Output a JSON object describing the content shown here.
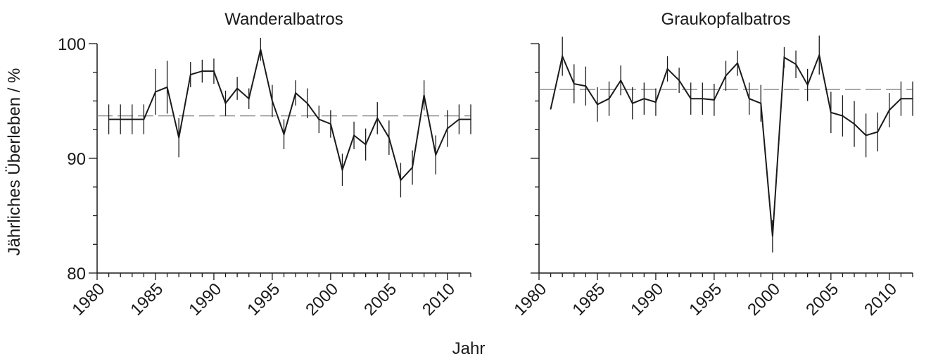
{
  "figure": {
    "ylabel": "Jährliches Überleben / %",
    "xlabel": "Jahr"
  },
  "chart_data": [
    {
      "type": "line",
      "title": "Wanderalbatros",
      "xlim": [
        1980,
        2012
      ],
      "ylim": [
        80,
        100
      ],
      "xticks": [
        1980,
        1985,
        1990,
        1995,
        2000,
        2005,
        2010
      ],
      "yticks": [
        80,
        90,
        100
      ],
      "grid": false,
      "reference_line": 93.7,
      "series": [
        {
          "x": [
            1981,
            1982,
            1983,
            1984,
            1985,
            1986,
            1987,
            1988,
            1989,
            1990,
            1991,
            1992,
            1993,
            1994,
            1995,
            1996,
            1997,
            1998,
            1999,
            2000,
            2001,
            2002,
            2003,
            2004,
            2005,
            2006,
            2007,
            2008,
            2009,
            2010,
            2011,
            2012
          ],
          "y": [
            93.4,
            93.4,
            93.4,
            93.4,
            95.8,
            96.2,
            91.8,
            97.3,
            97.6,
            97.6,
            94.8,
            96.1,
            95.2,
            99.5,
            95.0,
            92.1,
            95.7,
            94.8,
            93.4,
            93.0,
            89.0,
            92.0,
            91.2,
            93.5,
            91.8,
            88.1,
            89.2,
            95.5,
            90.3,
            92.6,
            93.4,
            93.4
          ],
          "err": [
            1.3,
            1.3,
            1.3,
            1.3,
            2.0,
            2.3,
            1.7,
            1.1,
            1.0,
            1.1,
            1.1,
            1.0,
            0.9,
            1.0,
            1.4,
            1.3,
            1.1,
            1.3,
            1.2,
            1.2,
            1.4,
            1.2,
            1.4,
            1.4,
            1.5,
            1.5,
            1.5,
            1.3,
            1.7,
            1.6,
            1.3,
            1.3
          ]
        }
      ]
    },
    {
      "type": "line",
      "title": "Graukopfalbatros",
      "xlim": [
        1980,
        2012
      ],
      "ylim": [
        80,
        100
      ],
      "xticks": [
        1980,
        1985,
        1990,
        1995,
        2000,
        2005,
        2010
      ],
      "yticks": [
        80,
        90,
        100
      ],
      "grid": false,
      "reference_line": 96.0,
      "series": [
        {
          "x": [
            1981,
            1982,
            1983,
            1984,
            1985,
            1986,
            1987,
            1988,
            1989,
            1990,
            1991,
            1992,
            1993,
            1994,
            1995,
            1996,
            1997,
            1998,
            1999,
            2000,
            2001,
            2002,
            2003,
            2004,
            2005,
            2006,
            2007,
            2008,
            2009,
            2010,
            2011,
            2012
          ],
          "y": [
            94.3,
            98.9,
            96.5,
            96.3,
            94.7,
            95.2,
            96.8,
            94.8,
            95.2,
            94.9,
            97.8,
            96.8,
            95.2,
            95.2,
            95.1,
            97.2,
            98.3,
            95.2,
            94.8,
            83.2,
            98.8,
            98.2,
            96.4,
            99.0,
            94.0,
            93.7,
            93.0,
            92.0,
            92.3,
            94.2,
            95.2,
            95.2
          ],
          "err": [
            0,
            1.7,
            1.7,
            1.7,
            1.5,
            1.5,
            1.3,
            1.4,
            1.4,
            1.2,
            1.1,
            1.1,
            1.4,
            1.4,
            1.4,
            1.3,
            1.1,
            1.4,
            1.6,
            1.4,
            0.9,
            1.2,
            1.4,
            1.7,
            1.8,
            1.8,
            2.0,
            1.9,
            1.7,
            1.5,
            1.5,
            1.5
          ]
        }
      ]
    }
  ]
}
